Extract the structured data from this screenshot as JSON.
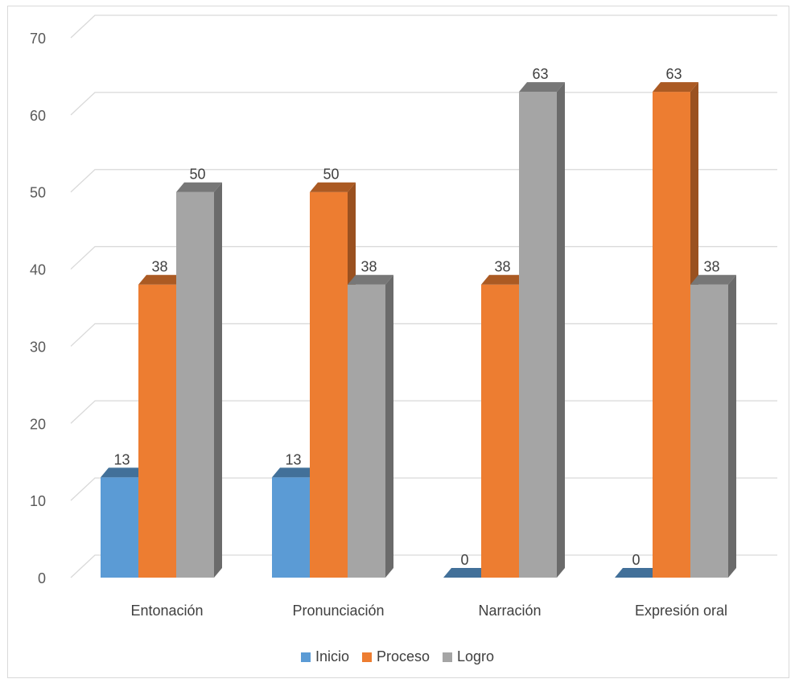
{
  "chart_data": {
    "type": "bar",
    "title": "",
    "xlabel": "",
    "ylabel": "",
    "ylim": [
      0,
      70
    ],
    "yticks": [
      0,
      10,
      20,
      30,
      40,
      50,
      60,
      70
    ],
    "grid": true,
    "legend_position": "bottom",
    "categories": [
      "Entonación",
      "Pronunciación",
      "Narración",
      "Expresión oral"
    ],
    "series": [
      {
        "name": "Inicio",
        "color": "#5b9bd5",
        "values": [
          13,
          13,
          0,
          0
        ]
      },
      {
        "name": "Proceso",
        "color": "#ed7d31",
        "values": [
          38,
          50,
          38,
          63
        ]
      },
      {
        "name": "Logro",
        "color": "#a5a5a5",
        "values": [
          50,
          38,
          63,
          38
        ]
      }
    ]
  }
}
